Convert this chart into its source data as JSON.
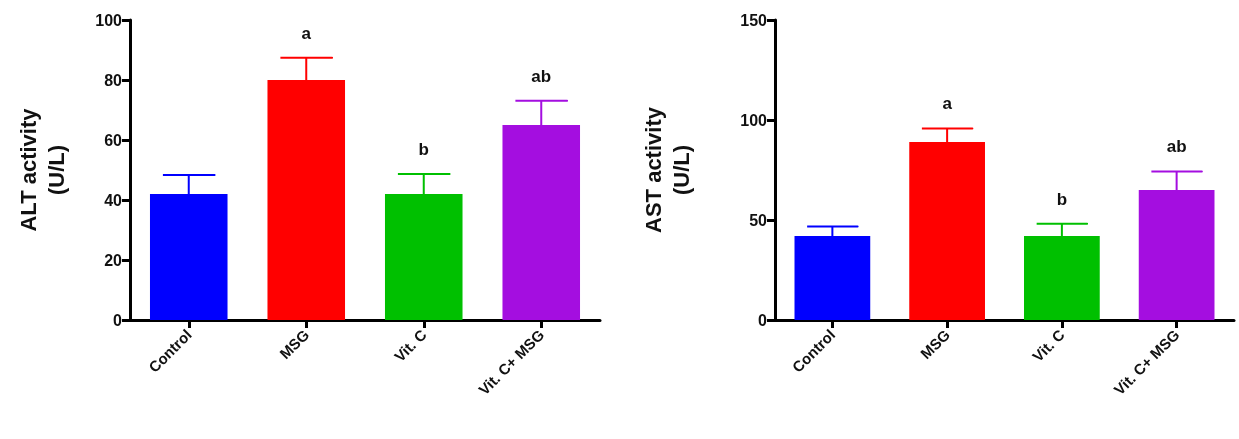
{
  "chart_data": [
    {
      "type": "bar",
      "ylabel": "ALT activity\n(U/L)",
      "categories": [
        "Control",
        "MSG",
        "Vit. C",
        "Vit. C+ MSG"
      ],
      "values": [
        42,
        80,
        42,
        65
      ],
      "colors": [
        "#0000ff",
        "#ff0000",
        "#00c000",
        "#a40ee0"
      ],
      "errors": [
        [
          42,
          48.3
        ],
        [
          80,
          87.4
        ],
        [
          42,
          48.7
        ],
        [
          65,
          73.1
        ]
      ],
      "ylim": [
        0,
        100
      ],
      "yticks": [
        0,
        20,
        40,
        60,
        80,
        100
      ],
      "grid": false,
      "annotations": [
        "a",
        "b",
        "ab"
      ]
    },
    {
      "type": "bar",
      "ylabel": "AST activity\n(U/L)",
      "categories": [
        "Control",
        "MSG",
        "Vit. C",
        "Vit. C+ MSG"
      ],
      "values": [
        42,
        89,
        42,
        65
      ],
      "colors": [
        "#0000ff",
        "#ff0000",
        "#00c000",
        "#a40ee0"
      ],
      "errors": [
        [
          42,
          46.7
        ],
        [
          89,
          95.8
        ],
        [
          42,
          48.1
        ],
        [
          65,
          74.3
        ]
      ],
      "ylim": [
        0,
        150
      ],
      "yticks": [
        0,
        50,
        100,
        150
      ],
      "grid": false,
      "annotations": [
        "a",
        "b",
        "ab"
      ]
    }
  ]
}
